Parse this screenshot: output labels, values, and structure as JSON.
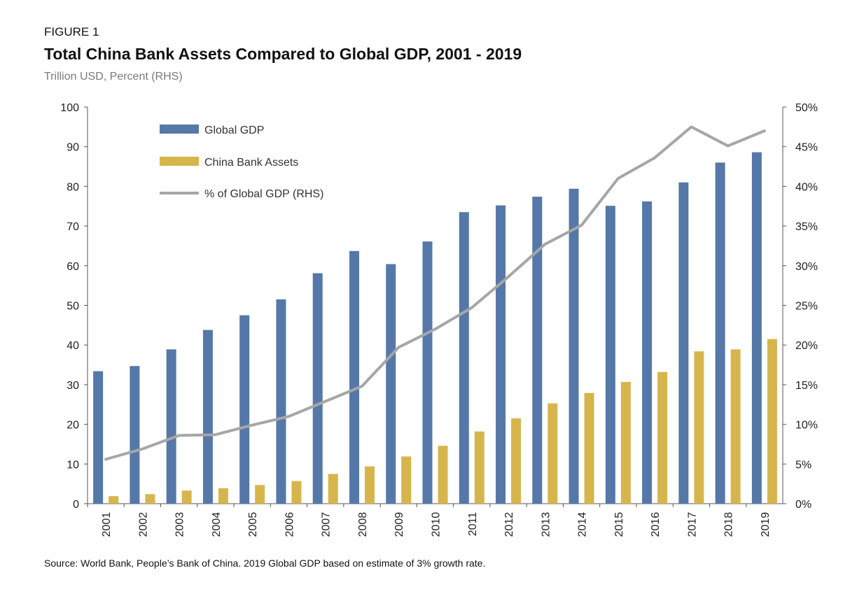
{
  "figure_label": "FIGURE 1",
  "source": "Source: World Bank, People’s Bank of China.  2019 Global GDP based on estimate of 3% growth rate.",
  "chart_data": {
    "type": "bar",
    "title": "Total China Bank Assets Compared to Global GDP, 2001 - 2019",
    "subtitle": "Trillion USD, Percent (RHS)",
    "categories": [
      "2001",
      "2002",
      "2003",
      "2004",
      "2005",
      "2006",
      "2007",
      "2008",
      "2009",
      "2010",
      "2011",
      "2012",
      "2013",
      "2014",
      "2015",
      "2016",
      "2017",
      "2018",
      "2019"
    ],
    "series": [
      {
        "name": "Global GDP",
        "type": "bar",
        "axis": "left",
        "color": "#5578a8",
        "values": [
          33.4,
          34.7,
          38.9,
          43.8,
          47.5,
          51.5,
          58.1,
          63.7,
          60.4,
          66.1,
          73.5,
          75.2,
          77.4,
          79.4,
          75.1,
          76.2,
          81.0,
          86.0,
          88.6
        ]
      },
      {
        "name": "China Bank Assets",
        "type": "bar",
        "axis": "left",
        "color": "#d7b54d",
        "values": [
          1.9,
          2.4,
          3.3,
          3.9,
          4.7,
          5.7,
          7.5,
          9.4,
          11.9,
          14.6,
          18.2,
          21.5,
          25.3,
          27.9,
          30.7,
          33.2,
          38.4,
          38.9,
          41.5
        ]
      },
      {
        "name": "% of Global GDP (RHS)",
        "type": "line",
        "axis": "right",
        "color": "#a6a6a6",
        "values": [
          5.6,
          6.9,
          8.6,
          8.7,
          9.9,
          11.0,
          12.9,
          14.8,
          19.7,
          22.0,
          24.7,
          28.6,
          32.7,
          35.1,
          41.0,
          43.6,
          47.5,
          45.1,
          47.0
        ]
      }
    ],
    "ylim": [
      0,
      100
    ],
    "yticks": [
      "0",
      "10",
      "20",
      "30",
      "40",
      "50",
      "60",
      "70",
      "80",
      "90",
      "100"
    ],
    "y2lim": [
      0,
      50
    ],
    "y2ticks": [
      "0%",
      "5%",
      "10%",
      "15%",
      "20%",
      "25%",
      "30%",
      "35%",
      "40%",
      "45%",
      "50%"
    ],
    "grid": false,
    "legend_position": "top-left"
  }
}
